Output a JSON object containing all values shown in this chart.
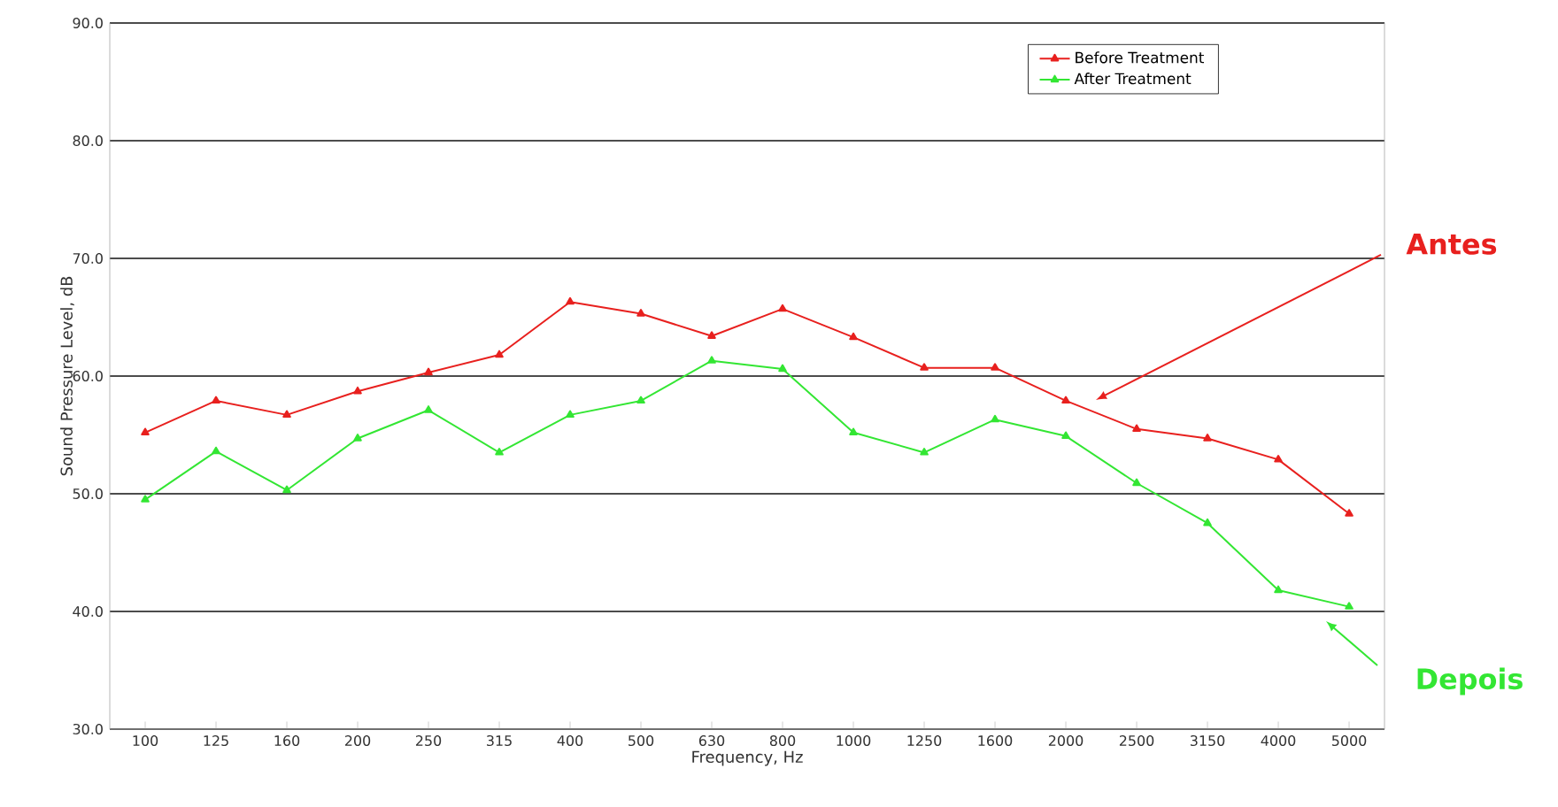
{
  "chart_data": {
    "type": "line",
    "xlabel": "Frequency, Hz",
    "ylabel": "Sound Pressure Level, dB",
    "categories": [
      "100",
      "125",
      "160",
      "200",
      "250",
      "315",
      "400",
      "500",
      "630",
      "800",
      "1000",
      "1250",
      "1600",
      "2000",
      "2500",
      "3150",
      "4000",
      "5000"
    ],
    "series": [
      {
        "name": "Before Treatment",
        "color": "#e8201e",
        "values": [
          55.2,
          57.9,
          56.7,
          58.7,
          60.3,
          61.8,
          66.3,
          65.3,
          63.4,
          65.7,
          63.3,
          60.7,
          60.7,
          57.9,
          55.5,
          54.7,
          52.9,
          48.3
        ]
      },
      {
        "name": "After Treatment",
        "color": "#33e633",
        "values": [
          49.5,
          53.6,
          50.3,
          54.7,
          57.1,
          53.5,
          56.7,
          57.9,
          61.3,
          60.6,
          55.2,
          53.5,
          56.3,
          54.9,
          50.9,
          47.5,
          41.8,
          40.4
        ]
      }
    ],
    "ylim": [
      30,
      90
    ],
    "yticks": [
      {
        "value": 30,
        "label": "30.0"
      },
      {
        "value": 40,
        "label": "40.0"
      },
      {
        "value": 50,
        "label": "50.0"
      },
      {
        "value": 60,
        "label": "60.0"
      },
      {
        "value": 70,
        "label": "70.0"
      },
      {
        "value": 80,
        "label": "80.0"
      },
      {
        "value": 90,
        "label": "90.0"
      }
    ],
    "grid": "y",
    "legend": "top right",
    "marker": "triangle",
    "line_style": "solid",
    "annotations": [
      "Antes",
      "Depois"
    ]
  }
}
